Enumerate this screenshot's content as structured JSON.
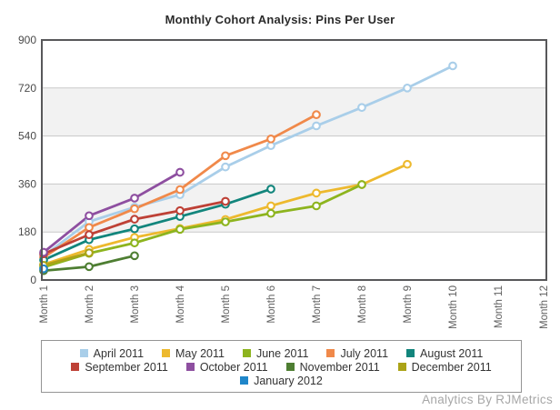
{
  "title": "Monthly Cohort Analysis: Pins Per User",
  "watermark": "Analytics By RJMetrics",
  "colors": {
    "frame": "#58585a",
    "grid": "#c9c9c9",
    "band": "#f2f2f2",
    "plot_background": "#ffffff",
    "axis_text": "#4a4a4a",
    "legend_border": "#949494",
    "legend_text": "#333333",
    "watermark": "#a7a7a7",
    "title": "#2b2b2b"
  },
  "chart_data": {
    "type": "line",
    "title": "Monthly Cohort Analysis: Pins Per User",
    "categories": [
      "Month 1",
      "Month 2",
      "Month 3",
      "Month 4",
      "Month 5",
      "Month 6",
      "Month 7",
      "Month 8",
      "Month 9",
      "Month 10",
      "Month 11",
      "Month 12"
    ],
    "xlabel": "",
    "ylabel": "",
    "ylim": [
      0,
      900
    ],
    "yticks": [
      0,
      180,
      360,
      540,
      720,
      900
    ],
    "grid": "horizontal",
    "band_fill_between": [
      [
        180,
        360
      ],
      [
        540,
        720
      ]
    ],
    "legend_position": "bottom",
    "legend_rows": [
      [
        0,
        1,
        2,
        3,
        4
      ],
      [
        5,
        6,
        7,
        8
      ],
      [
        9
      ]
    ],
    "marker": "open-circle",
    "series": [
      {
        "name": "April 2011",
        "color": "#A9CEE9",
        "values": [
          90,
          219,
          273,
          320,
          424,
          504,
          578,
          647,
          720,
          803
        ]
      },
      {
        "name": "May 2011",
        "color": "#EDB92E",
        "values": [
          58,
          115,
          160,
          193,
          227,
          278,
          326,
          358,
          434
        ]
      },
      {
        "name": "June 2011",
        "color": "#8DB41E",
        "values": [
          48,
          100,
          139,
          190,
          218,
          250,
          278,
          358
        ]
      },
      {
        "name": "July 2011",
        "color": "#F0894A",
        "values": [
          85,
          197,
          267,
          339,
          466,
          529,
          620
        ]
      },
      {
        "name": "August 2011",
        "color": "#12857C",
        "values": [
          75,
          151,
          192,
          238,
          284,
          341
        ]
      },
      {
        "name": "September 2011",
        "color": "#BE4136",
        "values": [
          98,
          170,
          228,
          260,
          295
        ]
      },
      {
        "name": "October 2011",
        "color": "#8E4FA0",
        "values": [
          104,
          241,
          307,
          404
        ]
      },
      {
        "name": "November 2011",
        "color": "#4E7E32",
        "values": [
          35,
          50,
          91
        ]
      },
      {
        "name": "December 2011",
        "color": "#ABA317",
        "values": [
          55,
          102
        ]
      },
      {
        "name": "January 2012",
        "color": "#1F86C9",
        "values": [
          42
        ]
      }
    ]
  }
}
